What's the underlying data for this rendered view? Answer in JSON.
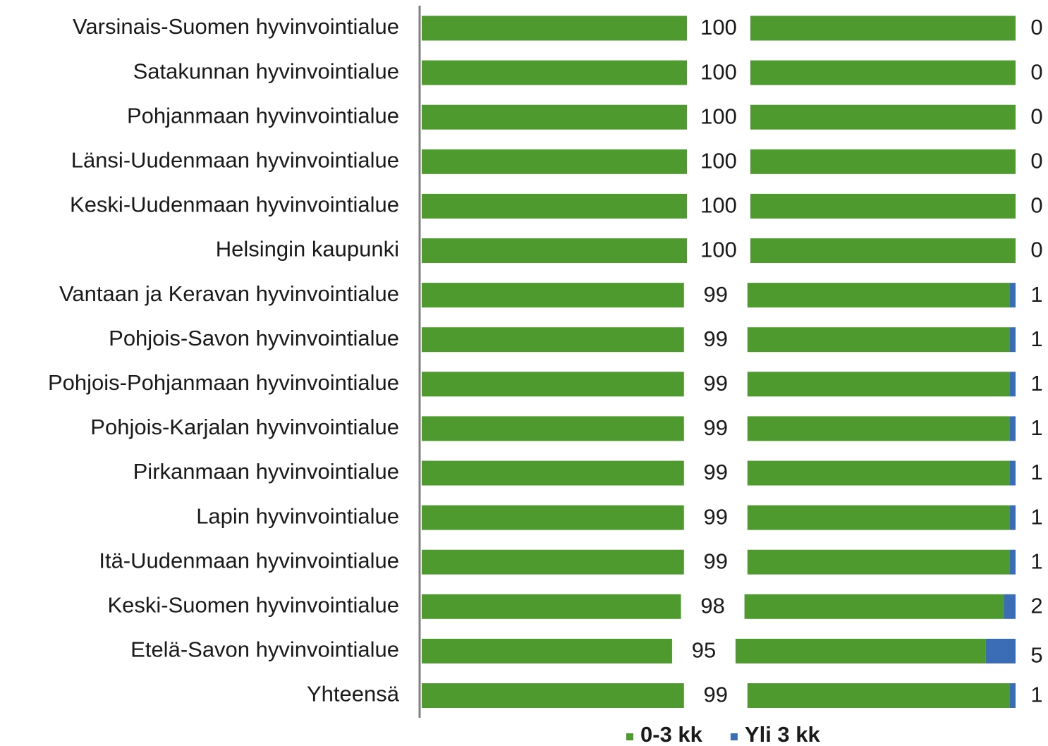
{
  "chart_data": {
    "type": "stacked_barh",
    "categories": [
      "Varsinais-Suomen hyvinvointialue",
      "Satakunnan hyvinvointialue",
      "Pohjanmaan hyvinvointialue",
      "Länsi-Uudenmaan hyvinvointialue",
      "Keski-Uudenmaan hyvinvointialue",
      "Helsingin kaupunki",
      "Vantaan ja Keravan hyvinvointialue",
      "Pohjois-Savon hyvinvointialue",
      "Pohjois-Pohjanmaan hyvinvointialue",
      "Pohjois-Karjalan hyvinvointialue",
      "Pirkanmaan hyvinvointialue",
      "Lapin hyvinvointialue",
      "Itä-Uudenmaan hyvinvointialue",
      "Keski-Suomen hyvinvointialue",
      "Etelä-Savon hyvinvointialue",
      "Yhteensä"
    ],
    "series": [
      {
        "name": "0-3 kk",
        "color": "#4e9a2f",
        "values": [
          100,
          100,
          100,
          100,
          100,
          100,
          99,
          99,
          99,
          99,
          99,
          99,
          99,
          98,
          95,
          99
        ]
      },
      {
        "name": "Yli 3 kk",
        "color": "#3a6db5",
        "values": [
          0,
          0,
          0,
          0,
          0,
          0,
          1,
          1,
          1,
          1,
          1,
          1,
          1,
          2,
          5,
          1
        ]
      }
    ],
    "xlim": [
      0,
      100
    ],
    "legend": "bottom"
  }
}
